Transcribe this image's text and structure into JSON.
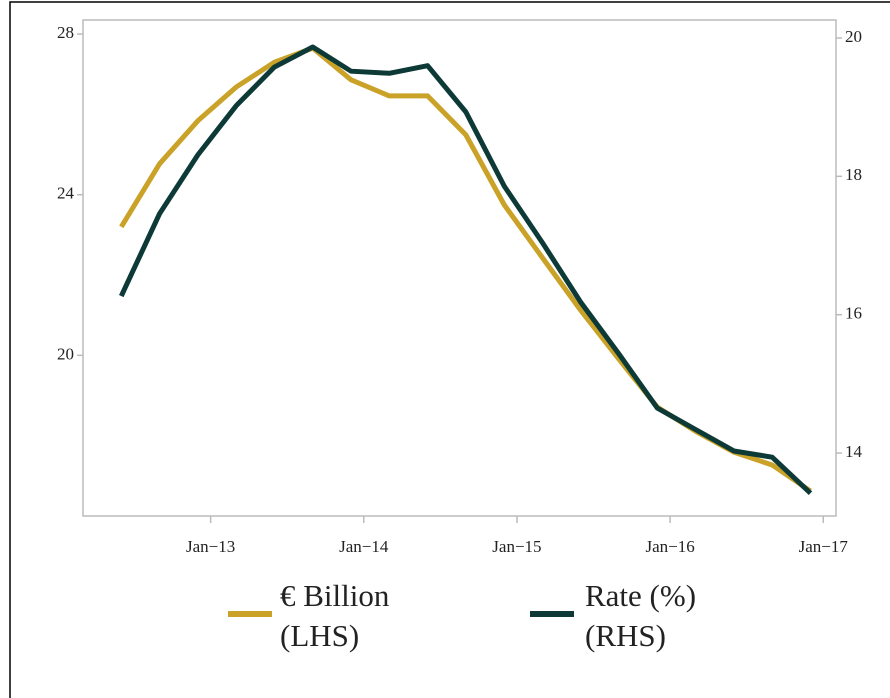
{
  "chart_data": {
    "type": "line",
    "x": [
      "2012-06",
      "2012-09",
      "2012-12",
      "2013-03",
      "2013-06",
      "2013-09",
      "2013-12",
      "2014-03",
      "2014-06",
      "2014-09",
      "2014-12",
      "2015-03",
      "2015-06",
      "2015-09",
      "2015-12",
      "2016-03",
      "2016-06",
      "2016-09",
      "2016-12"
    ],
    "series": [
      {
        "name": "€ Billion (LHS)",
        "color": "#c9a227",
        "axis": "y",
        "values": [
          23.2,
          24.77,
          25.84,
          26.68,
          27.3,
          27.65,
          26.86,
          26.46,
          26.46,
          25.49,
          23.75,
          22.43,
          21.12,
          19.9,
          18.71,
          18.11,
          17.59,
          17.27,
          16.62
        ]
      },
      {
        "name": "Rate (%) (RHS)",
        "color": "#0d3a36",
        "axis": "y2",
        "values": [
          16.27,
          17.46,
          18.31,
          19.02,
          19.58,
          19.87,
          19.52,
          19.49,
          19.6,
          18.93,
          17.86,
          17.04,
          16.18,
          15.43,
          14.65,
          14.34,
          14.03,
          13.94,
          13.42
        ]
      }
    ],
    "xlim": [
      "2012-03",
      "2017-02"
    ],
    "xticks": [
      {
        "value": "2013-01",
        "label": "Jan−13"
      },
      {
        "value": "2014-01",
        "label": "Jan−14"
      },
      {
        "value": "2015-01",
        "label": "Jan−15"
      },
      {
        "value": "2016-01",
        "label": "Jan−16"
      },
      {
        "value": "2017-01",
        "label": "Jan−17"
      }
    ],
    "ylim": [
      16,
      28.35
    ],
    "yticks": [
      20,
      24,
      28
    ],
    "y2lim": [
      13.09,
      20.26
    ],
    "y2ticks": [
      14,
      16,
      18,
      20
    ],
    "legend": "bottom"
  }
}
